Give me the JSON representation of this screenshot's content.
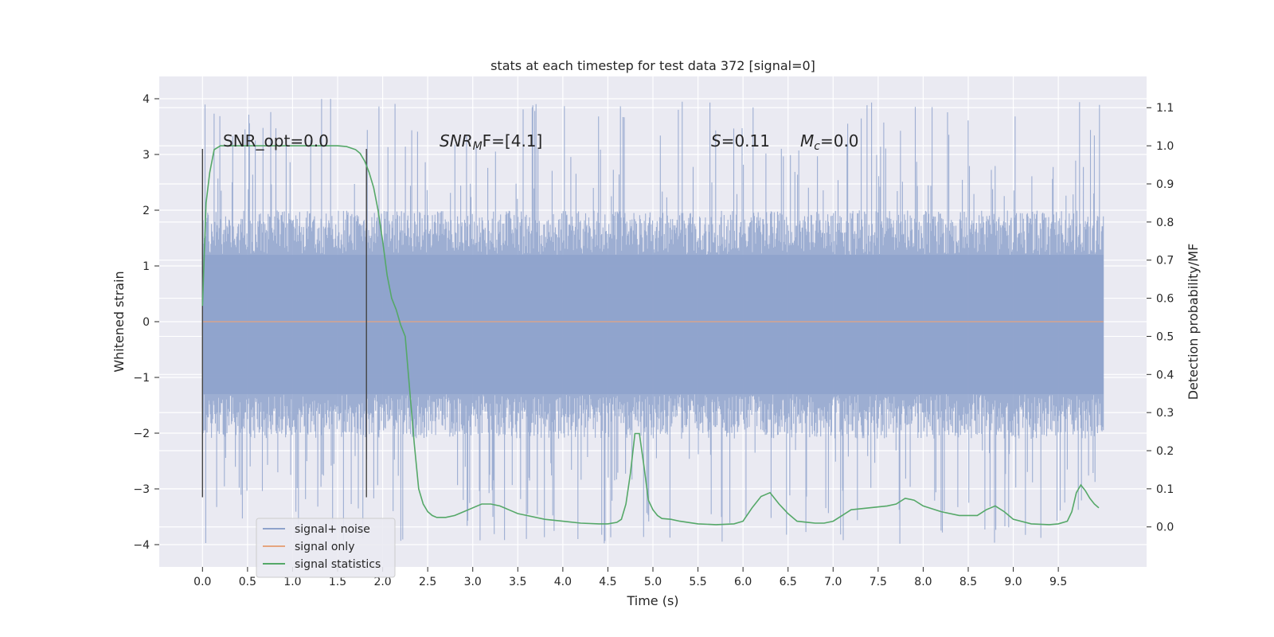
{
  "chart_data": {
    "type": "line",
    "title": "stats at each timestep for test data 372 [signal=0]",
    "xlabel": "Time (s)",
    "ylabel": "Whitened strain",
    "ylabel_right": "Detection probability/MF",
    "xlim": [
      -0.48,
      10.48
    ],
    "ylim": [
      -4.4,
      4.4
    ],
    "ylim_right": [
      -0.105,
      1.182
    ],
    "x_ticks": [
      "0.0",
      "0.5",
      "1.0",
      "1.5",
      "2.0",
      "2.5",
      "3.0",
      "3.5",
      "4.0",
      "4.5",
      "5.0",
      "5.5",
      "6.0",
      "6.5",
      "7.0",
      "7.5",
      "8.0",
      "8.5",
      "9.0",
      "9.5"
    ],
    "y_ticks": [
      "4",
      "3",
      "2",
      "1",
      "0",
      "−1",
      "−2",
      "−3",
      "−4"
    ],
    "y_tick_values": [
      4,
      3,
      2,
      1,
      0,
      -1,
      -2,
      -3,
      -4
    ],
    "y2_ticks": [
      "1.1",
      "1.0",
      "0.9",
      "0.8",
      "0.7",
      "0.6",
      "0.5",
      "0.4",
      "0.3",
      "0.2",
      "0.1",
      "0.0"
    ],
    "y2_tick_values": [
      1.1,
      1.0,
      0.9,
      0.8,
      0.7,
      0.6,
      0.5,
      0.4,
      0.3,
      0.2,
      0.1,
      0.0
    ],
    "vlines": [
      {
        "x": 0.0,
        "ymin": -3.15,
        "ymax": 3.1
      },
      {
        "x": 1.82,
        "ymin": -3.15,
        "ymax": 3.1
      }
    ],
    "annotations": {
      "snr_opt": "SNR_opt=0.0",
      "snr_mf_main": "SNR",
      "snr_mf_sub": "M",
      "snr_mf_rest": "F=[4.1]",
      "s_var": "S",
      "s_rest": "=0.11",
      "mc_var": "M",
      "mc_sub": "c",
      "mc_rest": "=0.0"
    },
    "legend": {
      "position": "lower-left",
      "entries": [
        {
          "label": "signal+ noise",
          "color": "#8fa3cc"
        },
        {
          "label": "signal only",
          "color": "#e5a57f"
        },
        {
          "label": "signal statistics",
          "color": "#55a868"
        }
      ]
    },
    "series": [
      {
        "name": "signal+ noise",
        "color": "#8fa3cc",
        "description": "dense whitened-strain noise between 0.0 and 10.0 s",
        "x_range": [
          0.0,
          10.0
        ],
        "typical_amplitude": [
          -1.3,
          1.2
        ],
        "spike_extremes": [
          -4.0,
          4.0
        ]
      },
      {
        "name": "signal only",
        "color": "#e5a57f",
        "x": [
          0.0,
          10.0
        ],
        "y": [
          0.0,
          0.0
        ]
      },
      {
        "name": "signal statistics",
        "color": "#55a868",
        "axis": "right",
        "x": [
          0.0,
          0.04,
          0.08,
          0.13,
          0.2,
          0.3,
          0.5,
          0.8,
          1.0,
          1.2,
          1.4,
          1.5,
          1.6,
          1.7,
          1.75,
          1.8,
          1.85,
          1.9,
          1.95,
          2.0,
          2.05,
          2.1,
          2.15,
          2.2,
          2.25,
          2.3,
          2.35,
          2.4,
          2.45,
          2.5,
          2.55,
          2.6,
          2.7,
          2.8,
          2.9,
          3.0,
          3.1,
          3.2,
          3.3,
          3.4,
          3.5,
          3.6,
          3.8,
          4.0,
          4.2,
          4.4,
          4.5,
          4.6,
          4.65,
          4.7,
          4.75,
          4.8,
          4.85,
          4.9,
          4.95,
          5.0,
          5.05,
          5.1,
          5.2,
          5.3,
          5.5,
          5.7,
          5.9,
          6.0,
          6.1,
          6.2,
          6.3,
          6.4,
          6.5,
          6.6,
          6.8,
          6.9,
          7.0,
          7.1,
          7.2,
          7.4,
          7.6,
          7.7,
          7.8,
          7.9,
          8.0,
          8.2,
          8.4,
          8.6,
          8.7,
          8.8,
          8.9,
          9.0,
          9.2,
          9.4,
          9.5,
          9.6,
          9.65,
          9.7,
          9.75,
          9.8,
          9.85,
          9.9,
          9.95
        ],
        "y": [
          0.58,
          0.85,
          0.93,
          0.99,
          1.0,
          1.0,
          1.0,
          1.0,
          1.0,
          1.0,
          1.0,
          1.0,
          0.998,
          0.99,
          0.98,
          0.96,
          0.93,
          0.89,
          0.83,
          0.75,
          0.66,
          0.6,
          0.57,
          0.53,
          0.5,
          0.36,
          0.22,
          0.1,
          0.06,
          0.04,
          0.03,
          0.025,
          0.025,
          0.03,
          0.04,
          0.05,
          0.06,
          0.06,
          0.055,
          0.045,
          0.035,
          0.03,
          0.02,
          0.015,
          0.01,
          0.008,
          0.008,
          0.012,
          0.02,
          0.06,
          0.14,
          0.245,
          0.245,
          0.16,
          0.07,
          0.045,
          0.03,
          0.022,
          0.02,
          0.015,
          0.008,
          0.006,
          0.008,
          0.015,
          0.05,
          0.08,
          0.09,
          0.06,
          0.035,
          0.015,
          0.01,
          0.01,
          0.015,
          0.03,
          0.045,
          0.05,
          0.055,
          0.06,
          0.075,
          0.07,
          0.055,
          0.04,
          0.03,
          0.03,
          0.045,
          0.055,
          0.04,
          0.02,
          0.008,
          0.006,
          0.008,
          0.015,
          0.04,
          0.09,
          0.11,
          0.095,
          0.075,
          0.06,
          0.05
        ]
      }
    ]
  }
}
